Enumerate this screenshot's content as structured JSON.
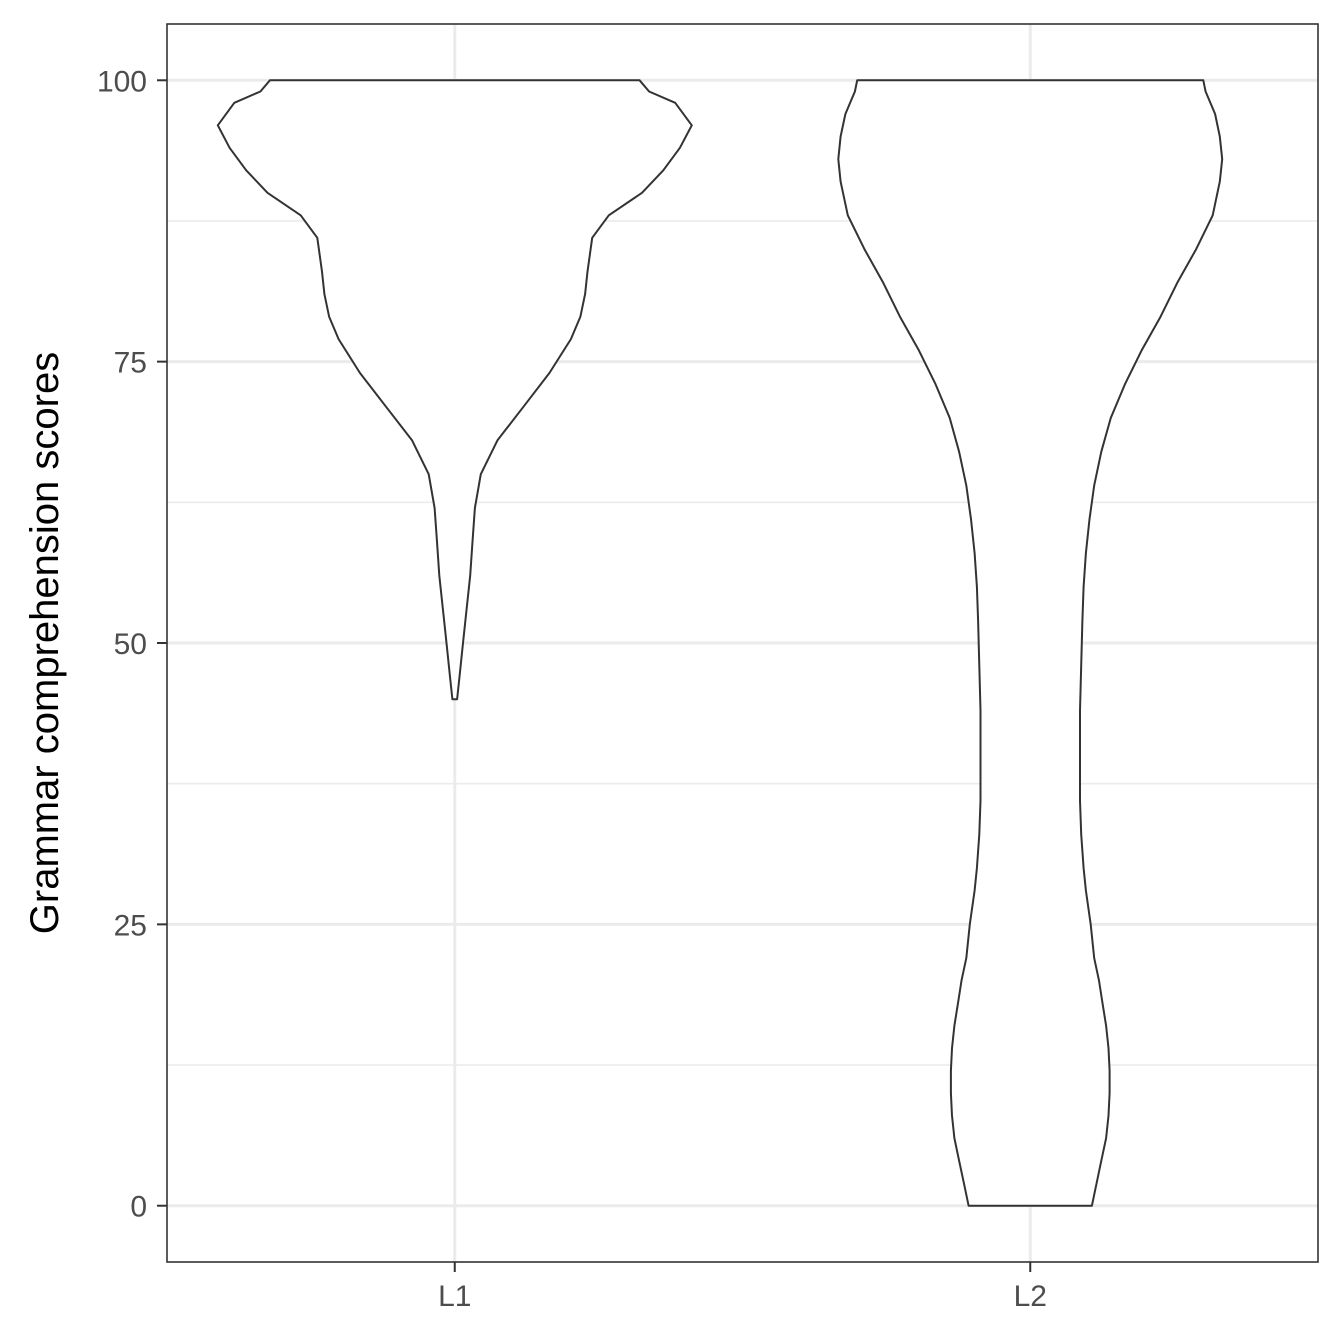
{
  "chart_data": {
    "type": "violin",
    "title": "",
    "xlabel": "",
    "ylabel": "Grammar comprehension scores",
    "categories": [
      "L1",
      "L2"
    ],
    "ylim": [
      -5,
      105
    ],
    "yticks": [
      0,
      25,
      50,
      75,
      100
    ],
    "grid": true,
    "legend": "none",
    "series": [
      {
        "category": "L1",
        "y_range": [
          45,
          100
        ],
        "density_profile": [
          [
            45,
            0.01
          ],
          [
            47,
            0.02
          ],
          [
            50,
            0.035
          ],
          [
            53,
            0.05
          ],
          [
            56,
            0.065
          ],
          [
            59,
            0.075
          ],
          [
            62,
            0.085
          ],
          [
            65,
            0.11
          ],
          [
            68,
            0.18
          ],
          [
            71,
            0.29
          ],
          [
            74,
            0.4
          ],
          [
            77,
            0.49
          ],
          [
            79,
            0.53
          ],
          [
            81,
            0.55
          ],
          [
            83,
            0.56
          ],
          [
            86,
            0.58
          ],
          [
            88,
            0.65
          ],
          [
            90,
            0.79
          ],
          [
            92,
            0.88
          ],
          [
            94,
            0.95
          ],
          [
            96,
            1.0
          ],
          [
            98,
            0.93
          ],
          [
            99,
            0.82
          ],
          [
            100,
            0.78
          ]
        ]
      },
      {
        "category": "L2",
        "y_range": [
          0,
          100
        ],
        "density_profile": [
          [
            0,
            0.26
          ],
          [
            2,
            0.28
          ],
          [
            4,
            0.3
          ],
          [
            6,
            0.32
          ],
          [
            8,
            0.33
          ],
          [
            10,
            0.335
          ],
          [
            12,
            0.335
          ],
          [
            14,
            0.33
          ],
          [
            16,
            0.32
          ],
          [
            18,
            0.305
          ],
          [
            20,
            0.29
          ],
          [
            22,
            0.27
          ],
          [
            25,
            0.255
          ],
          [
            28,
            0.235
          ],
          [
            30,
            0.225
          ],
          [
            33,
            0.215
          ],
          [
            36,
            0.21
          ],
          [
            40,
            0.21
          ],
          [
            44,
            0.21
          ],
          [
            48,
            0.215
          ],
          [
            52,
            0.22
          ],
          [
            55,
            0.225
          ],
          [
            58,
            0.235
          ],
          [
            61,
            0.25
          ],
          [
            64,
            0.27
          ],
          [
            67,
            0.3
          ],
          [
            70,
            0.34
          ],
          [
            73,
            0.4
          ],
          [
            76,
            0.47
          ],
          [
            79,
            0.55
          ],
          [
            82,
            0.62
          ],
          [
            85,
            0.7
          ],
          [
            88,
            0.77
          ],
          [
            91,
            0.8
          ],
          [
            93,
            0.81
          ],
          [
            95,
            0.8
          ],
          [
            97,
            0.78
          ],
          [
            99,
            0.74
          ],
          [
            100,
            0.73
          ]
        ]
      }
    ]
  }
}
